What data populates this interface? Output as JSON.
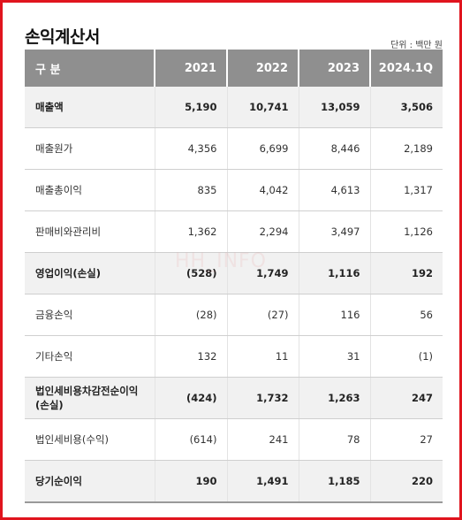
{
  "title": "손익계산서",
  "unit": "단위 : 백만 원",
  "watermark": "HH_INFO",
  "table": {
    "header": [
      "구 분",
      "2021",
      "2022",
      "2023",
      "2024.1Q"
    ],
    "rows": [
      {
        "cells": [
          "매출액",
          "5,190",
          "10,741",
          "13,059",
          "3,506"
        ],
        "bold": true
      },
      {
        "cells": [
          "매출원가",
          "4,356",
          "6,699",
          "8,446",
          "2,189"
        ],
        "bold": false
      },
      {
        "cells": [
          "매출총이익",
          "835",
          "4,042",
          "4,613",
          "1,317"
        ],
        "bold": false
      },
      {
        "cells": [
          "판매비와관리비",
          "1,362",
          "2,294",
          "3,497",
          "1,126"
        ],
        "bold": false
      },
      {
        "cells": [
          "영업이익(손실)",
          "(528)",
          "1,749",
          "1,116",
          "192"
        ],
        "bold": true
      },
      {
        "cells": [
          "금융손익",
          "(28)",
          "(27)",
          "116",
          "56"
        ],
        "bold": false
      },
      {
        "cells": [
          "기타손익",
          "132",
          "11",
          "31",
          "(1)"
        ],
        "bold": false
      },
      {
        "cells": [
          "법인세비용차감전순이익\n(손실)",
          "(424)",
          "1,732",
          "1,263",
          "247"
        ],
        "bold": true
      },
      {
        "cells": [
          "법인세비용(수익)",
          "(614)",
          "241",
          "78",
          "27"
        ],
        "bold": false
      },
      {
        "cells": [
          "당기순이익",
          "190",
          "1,491",
          "1,185",
          "220"
        ],
        "bold": true
      }
    ]
  }
}
